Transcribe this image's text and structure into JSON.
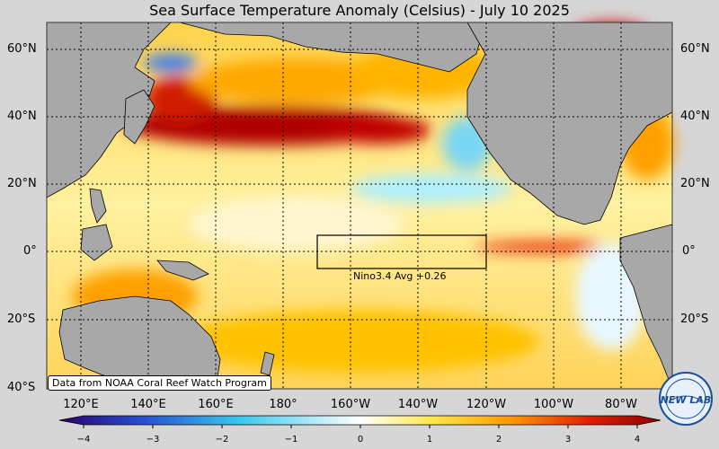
{
  "title": "Sea Surface Temperature Anomaly (Celsius) - July 10 2025",
  "lat_labels": [
    "60°N",
    "40°N",
    "20°N",
    "0°",
    "20°S",
    "40°S"
  ],
  "lon_labels": [
    "120°E",
    "140°E",
    "160°E",
    "180°",
    "160°W",
    "140°W",
    "120°W",
    "100°W",
    "80°W"
  ],
  "box_label": "Nino3.4 Avg  +0.26",
  "credit": "Data from NOAA Coral Reef Watch Program",
  "logo_text": "NEW LAB",
  "colorbar": {
    "ticks": [
      "−4",
      "−3",
      "−2",
      "−1",
      "0",
      "1",
      "2",
      "3",
      "4"
    ],
    "colors": [
      "#2a0073",
      "#2850d0",
      "#38c8f0",
      "#ffffff",
      "#ffe84a",
      "#ff9a00",
      "#e02000",
      "#8c0000"
    ]
  },
  "colors": {
    "land": "#a8a8a8",
    "anomaly_warm": "#ff9a00",
    "anomaly_hot": "#b00000",
    "anomaly_cool": "#38c8f0"
  }
}
